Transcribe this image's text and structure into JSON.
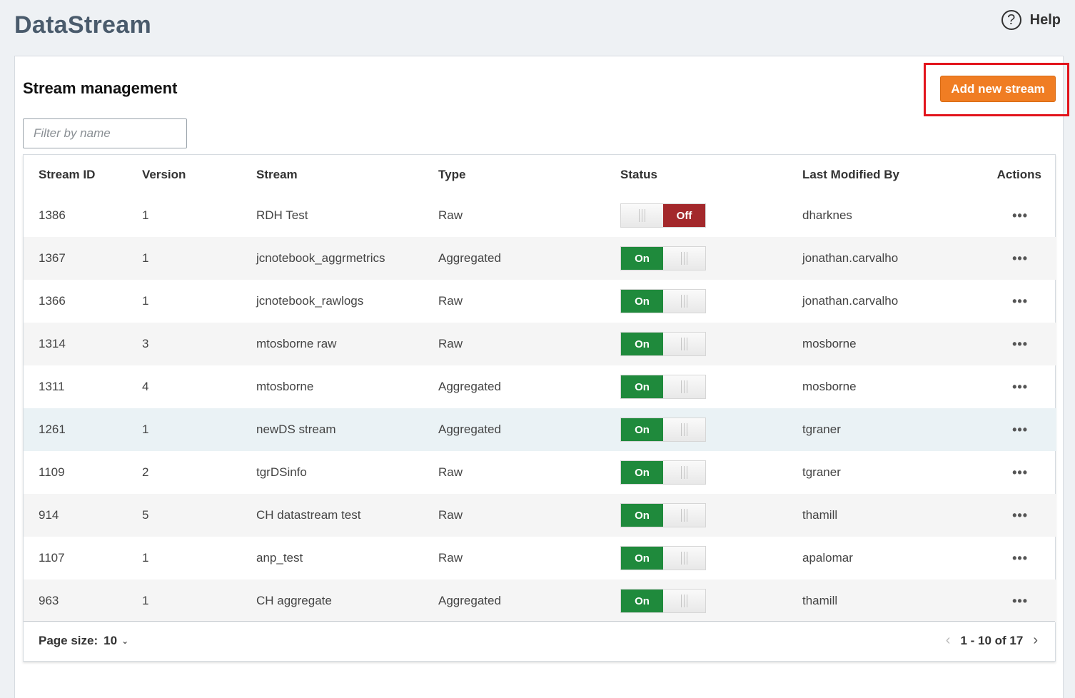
{
  "app": {
    "title": "DataStream",
    "help_label": "Help",
    "help_icon": "question-circle-icon"
  },
  "panel": {
    "title": "Stream management",
    "add_button_label": "Add new stream",
    "add_button_color": "#f07d23",
    "filter_placeholder": "Filter by name",
    "filter_value": ""
  },
  "table": {
    "headers": {
      "stream_id": "Stream ID",
      "version": "Version",
      "stream": "Stream",
      "type": "Type",
      "status": "Status",
      "last_modified_by": "Last Modified By",
      "actions": "Actions"
    },
    "on_label": "On",
    "off_label": "Off",
    "on_color": "#1f8a3c",
    "off_color": "#a3282b",
    "actions_label": "•••",
    "rows": [
      {
        "id": "1386",
        "version": "1",
        "stream": "RDH Test",
        "type": "Raw",
        "status": "off",
        "modified_by": "dharknes"
      },
      {
        "id": "1367",
        "version": "1",
        "stream": "jcnotebook_aggrmetrics",
        "type": "Aggregated",
        "status": "on",
        "modified_by": "jonathan.carvalho"
      },
      {
        "id": "1366",
        "version": "1",
        "stream": "jcnotebook_rawlogs",
        "type": "Raw",
        "status": "on",
        "modified_by": "jonathan.carvalho"
      },
      {
        "id": "1314",
        "version": "3",
        "stream": "mtosborne raw",
        "type": "Raw",
        "status": "on",
        "modified_by": "mosborne"
      },
      {
        "id": "1311",
        "version": "4",
        "stream": "mtosborne",
        "type": "Aggregated",
        "status": "on",
        "modified_by": "mosborne"
      },
      {
        "id": "1261",
        "version": "1",
        "stream": "newDS stream",
        "type": "Aggregated",
        "status": "on",
        "modified_by": "tgraner"
      },
      {
        "id": "1109",
        "version": "2",
        "stream": "tgrDSinfo",
        "type": "Raw",
        "status": "on",
        "modified_by": "tgraner"
      },
      {
        "id": "914",
        "version": "5",
        "stream": "CH datastream test",
        "type": "Raw",
        "status": "on",
        "modified_by": "thamill"
      },
      {
        "id": "1107",
        "version": "1",
        "stream": "anp_test",
        "type": "Raw",
        "status": "on",
        "modified_by": "apalomar"
      },
      {
        "id": "963",
        "version": "1",
        "stream": "CH aggregate",
        "type": "Aggregated",
        "status": "on",
        "modified_by": "thamill"
      }
    ]
  },
  "pagination": {
    "page_size_label": "Page size:",
    "page_size_value": "10",
    "range_label": "1 - 10 of 17",
    "prev_icon": "chevron-left-icon",
    "next_icon": "chevron-right-icon"
  }
}
